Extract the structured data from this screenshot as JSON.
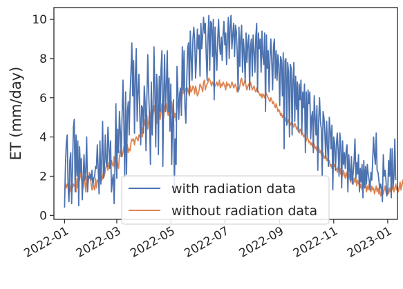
{
  "chart_data": {
    "type": "line",
    "title": "",
    "xlabel": "",
    "ylabel": "ET (mm/day)",
    "x_start": "2022-01-01",
    "x_end": "2022-12-31",
    "xlim": [
      "2021-12-20",
      "2023-01-12"
    ],
    "ylim": [
      -0.2,
      10.6
    ],
    "yticks": [
      0,
      2,
      4,
      6,
      8,
      10
    ],
    "ytick_labels": [
      "0",
      "2",
      "4",
      "6",
      "8",
      "10"
    ],
    "xticks": [
      "2022-01-01",
      "2022-03-01",
      "2022-05-01",
      "2022-07-01",
      "2022-09-01",
      "2022-11-01",
      "2023-01-01"
    ],
    "xtick_labels": [
      "2022-01",
      "2022-03",
      "2022-05",
      "2022-07",
      "2022-09",
      "2022-11",
      "2023-01"
    ],
    "grid": false,
    "legend_position": "lower-center",
    "series": [
      {
        "name": "with radiation data",
        "color": "#4c72b0",
        "values": [
          0.4,
          2.5,
          3.7,
          4.1,
          1.5,
          0.7,
          2.8,
          3.2,
          0.6,
          2.4,
          4.5,
          4.9,
          1.2,
          4.1,
          2.0,
          3.8,
          0.5,
          3.5,
          2.2,
          2.9,
          0.8,
          1.9,
          3.1,
          1.8,
          2.3,
          4.0,
          1.2,
          2.0,
          1.9,
          2.1,
          1.8,
          2.3,
          1.5,
          1.9,
          2.0,
          2.5,
          2.4,
          3.6,
          2.4,
          1.1,
          3.8,
          1.6,
          2.9,
          4.8,
          1.9,
          2.3,
          4.1,
          2.7,
          2.5,
          4.5,
          3.6,
          2.4,
          3.8,
          1.2,
          1.8,
          2.1,
          0.6,
          2.5,
          5.7,
          1.9,
          4.4,
          3.2,
          5.3,
          4.3,
          3.0,
          5.1,
          6.9,
          4.7,
          1.9,
          6.3,
          2.1,
          5.3,
          5.8,
          4.1,
          6.2,
          7.3,
          8.8,
          6.1,
          7.9,
          4.2,
          7.1,
          8.5,
          4.8,
          6.3,
          7.2,
          5.1,
          3.6,
          5.6,
          5.5,
          4.2,
          6.6,
          5.8,
          3.3,
          6.0,
          8.2,
          6.3,
          5.0,
          2.6,
          6.8,
          4.1,
          5.4,
          8.6,
          6.4,
          3.5,
          7.2,
          6.4,
          3.1,
          7.1,
          5.3,
          7.5,
          8.4,
          2.5,
          6.1,
          8.2,
          5.3,
          6.6,
          8.4,
          5.3,
          7.0,
          4.3,
          6.7,
          2.6,
          4.9,
          5.9,
          1.4,
          3.9,
          2.6,
          7.6,
          6.4,
          4.9,
          6.2,
          6.5,
          5.1,
          8.6,
          6.4,
          8.4,
          5.5,
          4.7,
          6.8,
          8.5,
          8.8,
          6.2,
          9.4,
          8.1,
          6.9,
          9.0,
          9.6,
          8.9,
          7.0,
          8.0,
          9.5,
          8.5,
          9.2,
          7.1,
          9.8,
          8.5,
          9.2,
          10.1,
          9.3,
          9.8,
          8.2,
          6.9,
          9.1,
          10.2,
          7.4,
          9.9,
          9.8,
          8.1,
          10.0,
          5.9,
          9.6,
          8.4,
          7.4,
          9.0,
          10.0,
          8.7,
          8.2,
          9.1,
          7.9,
          9.2,
          9.9,
          8.7,
          9.3,
          7.7,
          9.1,
          10.1,
          8.0,
          9.6,
          10.2,
          8.5,
          9.2,
          9.8,
          8.1,
          9.7,
          9.4,
          8.3,
          6.3,
          9.6,
          7.6,
          9.1,
          9.7,
          7.3,
          9.0,
          8.3,
          6.8,
          9.3,
          7.8,
          8.8,
          9.2,
          6.4,
          8.6,
          9.0,
          7.1,
          9.2,
          8.4,
          7.3,
          9.1,
          9.8,
          6.3,
          9.3,
          8.5,
          9.0,
          7.3,
          9.4,
          8.1,
          7.7,
          9.3,
          5.3,
          9.2,
          7.5,
          8.4,
          6.3,
          8.0,
          9.0,
          7.9,
          6.4,
          8.6,
          9.0,
          7.0,
          8.4,
          6.9,
          8.2,
          7.7,
          5.6,
          8.1,
          7.9,
          6.1,
          8.3,
          3.4,
          7.9,
          8.0,
          4.6,
          7.8,
          7.3,
          4.0,
          7.7,
          7.5,
          4.1,
          6.9,
          7.8,
          4.8,
          7.1,
          5.4,
          6.8,
          4.3,
          6.7,
          5.9,
          6.9,
          4.2,
          6.3,
          5.5,
          6.7,
          3.2,
          6.3,
          4.0,
          6.4,
          5.7,
          6.3,
          3.9,
          5.0,
          5.3,
          3.2,
          6.1,
          5.0,
          4.1,
          5.6,
          2.3,
          4.8,
          6.0,
          4.8,
          4.4,
          2.0,
          5.3,
          5.0,
          4.2,
          2.9,
          4.8,
          3.5,
          2.5,
          5.0,
          4.4,
          3.4,
          4.6,
          1.3,
          4.0,
          3.7,
          2.3,
          3.6,
          4.2,
          3.3,
          2.0,
          4.2,
          3.5,
          1.4,
          3.8,
          2.6,
          3.2,
          2.4,
          3.3,
          3.6,
          1.2,
          3.1,
          2.3,
          1.8,
          3.0,
          1.6,
          2.2,
          2.8,
          3.9,
          1.9,
          2.7,
          2.1,
          3.1,
          1.2,
          2.4,
          1.7,
          2.6,
          0.9,
          2.8,
          1.4,
          2.5,
          1.6,
          2.6,
          2.1,
          1.8,
          1.3,
          2.2,
          1.8,
          2.8,
          4.0,
          3.1,
          2.6,
          4.2,
          2.3,
          2.2,
          1.8,
          1.3,
          1.6,
          1.4,
          0.7,
          3.1,
          2.0,
          2.3,
          1.8,
          1.0,
          1.2,
          2.8,
          2.0,
          3.4,
          0.9,
          3.4,
          1.4,
          2.0,
          3.9,
          1.8
        ]
      },
      {
        "name": "without radiation data",
        "color": "#dd8452",
        "values": [
          1.3,
          1.6,
          1.4,
          1.6,
          1.5,
          1.3,
          1.2,
          1.5,
          1.7,
          1.4,
          1.6,
          1.5,
          1.5,
          1.2,
          1.9,
          1.4,
          1.8,
          1.8,
          2.3,
          1.9,
          1.6,
          1.4,
          2.0,
          1.7,
          1.2,
          2.0,
          1.5,
          1.8,
          2.2,
          2.0,
          1.6,
          1.3,
          1.4,
          1.5,
          1.3,
          1.9,
          1.4,
          1.8,
          1.8,
          1.6,
          2.0,
          2.3,
          1.8,
          1.9,
          2.3,
          2.0,
          2.3,
          2.5,
          2.6,
          2.3,
          2.7,
          2.5,
          2.4,
          2.8,
          2.6,
          2.5,
          3.0,
          2.3,
          3.0,
          2.9,
          2.6,
          2.4,
          3.0,
          3.3,
          3.4,
          3.0,
          3.2,
          3.5,
          3.4,
          3.3,
          3.5,
          3.6,
          3.2,
          3.4,
          3.3,
          3.7,
          3.9,
          3.8,
          3.9,
          3.6,
          3.9,
          4.0,
          3.9,
          3.8,
          4.1,
          4.0,
          4.3,
          4.5,
          4.0,
          4.7,
          4.6,
          4.9,
          4.7,
          5.1,
          4.4,
          4.8,
          5.3,
          5.0,
          4.8,
          5.4,
          5.1,
          5.6,
          5.3,
          5.2,
          4.7,
          5.6,
          5.4,
          5.5,
          4.9,
          5.3,
          5.7,
          5.4,
          5.0,
          5.6,
          5.5,
          5.7,
          5.3,
          5.1,
          5.5,
          5.3,
          4.9,
          5.8,
          5.2,
          5.5,
          5.0,
          5.2,
          4.8,
          5.6,
          5.8,
          5.1,
          5.9,
          6.1,
          5.8,
          6.2,
          6.4,
          6.2,
          6.5,
          6.4,
          6.2,
          6.5,
          6.3,
          6.1,
          6.6,
          6.3,
          6.4,
          6.6,
          6.5,
          6.2,
          6.6,
          6.4,
          6.1,
          6.2,
          6.4,
          6.7,
          6.6,
          6.5,
          6.3,
          6.8,
          6.9,
          6.4,
          6.6,
          6.7,
          6.8,
          7.0,
          6.9,
          6.8,
          6.6,
          6.8,
          6.7,
          6.5,
          6.6,
          6.7,
          6.8,
          6.6,
          6.7,
          6.9,
          6.5,
          6.7,
          6.6,
          6.8,
          6.7,
          6.6,
          6.4,
          6.8,
          6.6,
          6.7,
          6.7,
          6.5,
          6.6,
          6.8,
          6.7,
          6.5,
          6.6,
          6.7,
          6.5,
          6.3,
          6.6,
          6.4,
          6.6,
          6.9,
          7.0,
          6.7,
          6.6,
          6.8,
          6.9,
          6.6,
          6.4,
          6.6,
          6.7,
          6.5,
          6.8,
          6.6,
          6.4,
          6.5,
          6.6,
          6.4,
          6.3,
          6.5,
          6.4,
          6.3,
          6.2,
          6.1,
          6.2,
          6.0,
          6.2,
          6.1,
          6.0,
          6.3,
          6.2,
          6.1,
          6.0,
          5.9,
          5.8,
          6.0,
          5.9,
          5.7,
          5.8,
          5.6,
          5.5,
          5.7,
          5.5,
          5.3,
          5.4,
          5.3,
          5.1,
          5.2,
          5.0,
          5.1,
          4.9,
          5.0,
          4.8,
          4.9,
          4.7,
          4.9,
          4.8,
          4.6,
          4.7,
          4.8,
          4.6,
          4.5,
          4.7,
          4.6,
          4.4,
          4.5,
          4.3,
          4.2,
          4.4,
          4.3,
          4.1,
          4.2,
          4.0,
          4.1,
          3.9,
          3.8,
          4.0,
          3.9,
          3.7,
          3.8,
          3.6,
          3.7,
          3.5,
          3.8,
          3.6,
          3.4,
          3.5,
          3.3,
          3.4,
          3.5,
          3.2,
          3.3,
          3.1,
          3.0,
          3.2,
          2.9,
          3.0,
          3.1,
          2.8,
          2.9,
          2.7,
          2.8,
          2.5,
          2.6,
          2.4,
          2.7,
          2.5,
          2.6,
          2.3,
          2.4,
          2.2,
          2.5,
          2.3,
          2.4,
          2.1,
          2.2,
          2.0,
          2.3,
          2.1,
          1.9,
          2.2,
          2.0,
          1.8,
          2.1,
          1.9,
          1.7,
          2.0,
          1.8,
          1.6,
          1.9,
          1.7,
          1.9,
          1.5,
          1.8,
          1.6,
          1.7,
          1.4,
          1.6,
          1.3,
          1.5,
          1.7,
          1.4,
          1.6,
          1.2,
          1.5,
          1.3,
          1.6,
          1.4,
          1.2,
          1.5,
          1.3,
          1.4,
          1.1,
          1.3,
          1.5,
          1.2,
          1.4,
          1.1,
          1.3,
          1.0,
          1.2,
          1.4,
          1.1,
          1.3,
          1.5,
          1.2,
          1.0,
          1.3,
          1.1,
          1.4,
          1.2,
          1.6,
          1.3,
          1.5,
          1.2,
          1.4,
          1.6,
          1.3,
          1.5,
          1.2,
          1.4,
          1.7,
          1.3,
          1.6,
          1.8,
          1.4,
          1.9,
          1.8
        ]
      }
    ]
  }
}
